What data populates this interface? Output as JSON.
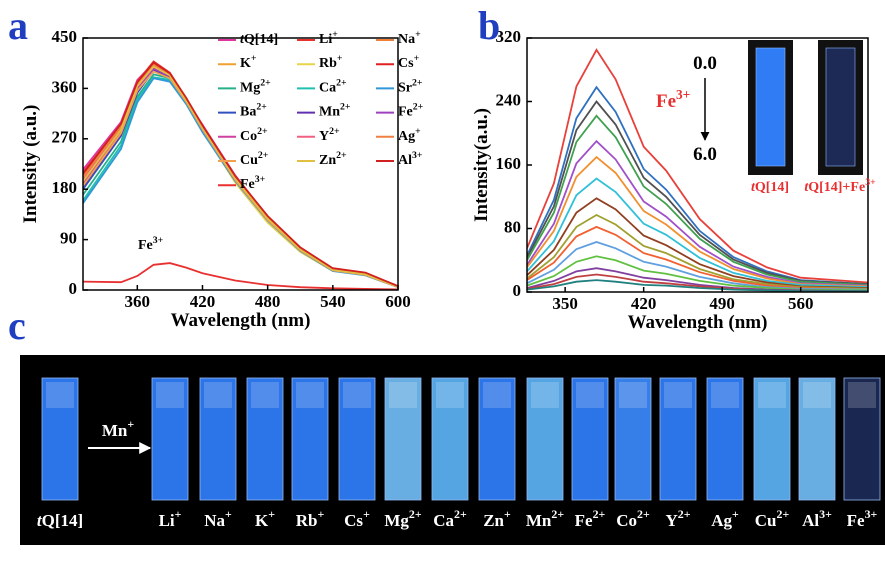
{
  "chart_data": [
    {
      "type": "line",
      "panel": "a",
      "xlabel": "Wavelength (nm)",
      "ylabel": "Intensity (a.u.)",
      "xlim": [
        310,
        600
      ],
      "xticks": [
        360,
        420,
        480,
        540,
        600
      ],
      "ylim": [
        0,
        450
      ],
      "yticks": [
        0,
        90,
        180,
        270,
        360,
        450
      ],
      "annotation": "Fe3+",
      "x": [
        310,
        345,
        360,
        375,
        390,
        405,
        420,
        450,
        480,
        510,
        540,
        570,
        600
      ],
      "series": [
        {
          "name": "tQ[14]",
          "color": "#e0359b",
          "values": [
            215,
            300,
            375,
            405,
            385,
            340,
            295,
            205,
            130,
            75,
            38,
            30,
            5
          ]
        },
        {
          "name": "Li+",
          "color": "#e8322e",
          "values": [
            210,
            295,
            372,
            408,
            388,
            342,
            293,
            200,
            128,
            74,
            37,
            29,
            5
          ]
        },
        {
          "name": "Na+",
          "color": "#f07f3c",
          "values": [
            200,
            290,
            368,
            402,
            384,
            340,
            290,
            198,
            125,
            72,
            36,
            28,
            6
          ]
        },
        {
          "name": "K+",
          "color": "#f0a030",
          "values": [
            195,
            288,
            365,
            400,
            382,
            338,
            288,
            195,
            122,
            70,
            35,
            27,
            6
          ]
        },
        {
          "name": "Rb+",
          "color": "#e8d44a",
          "values": [
            190,
            285,
            360,
            396,
            380,
            335,
            285,
            192,
            120,
            68,
            34,
            27,
            6
          ]
        },
        {
          "name": "Cs+",
          "color": "#e02020",
          "values": [
            205,
            295,
            370,
            404,
            386,
            342,
            292,
            203,
            132,
            76,
            38,
            30,
            7
          ]
        },
        {
          "name": "Mg2+",
          "color": "#26b08a",
          "values": [
            170,
            265,
            345,
            385,
            378,
            338,
            288,
            200,
            128,
            73,
            36,
            28,
            6
          ]
        },
        {
          "name": "Ca2+",
          "color": "#20c0b0",
          "values": [
            160,
            258,
            340,
            380,
            375,
            335,
            285,
            198,
            126,
            72,
            35,
            27,
            6
          ]
        },
        {
          "name": "Sr2+",
          "color": "#3098d8",
          "values": [
            155,
            252,
            335,
            378,
            372,
            332,
            282,
            195,
            124,
            70,
            34,
            26,
            5
          ]
        },
        {
          "name": "Ba2+",
          "color": "#3050c0",
          "values": [
            180,
            275,
            352,
            392,
            380,
            338,
            288,
            198,
            126,
            72,
            36,
            28,
            6
          ]
        },
        {
          "name": "Mn2+",
          "color": "#6030b0",
          "values": [
            185,
            278,
            355,
            394,
            381,
            339,
            289,
            199,
            127,
            73,
            36,
            28,
            6
          ]
        },
        {
          "name": "Fe2+",
          "color": "#a040c0",
          "values": [
            188,
            280,
            358,
            395,
            382,
            338,
            290,
            200,
            128,
            74,
            37,
            29,
            6
          ]
        },
        {
          "name": "Co2+",
          "color": "#d040a0",
          "values": [
            192,
            284,
            362,
            398,
            384,
            340,
            291,
            201,
            129,
            74,
            37,
            29,
            6
          ]
        },
        {
          "name": "Y2+",
          "color": "#f06080",
          "values": [
            198,
            288,
            366,
            402,
            386,
            342,
            293,
            203,
            131,
            75,
            38,
            30,
            6
          ]
        },
        {
          "name": "Ag+",
          "color": "#f08040",
          "values": [
            202,
            292,
            368,
            403,
            385,
            341,
            292,
            202,
            130,
            75,
            38,
            30,
            6
          ]
        },
        {
          "name": "Cu2+",
          "color": "#f0a050",
          "values": [
            186,
            280,
            356,
            390,
            378,
            336,
            287,
            197,
            125,
            71,
            35,
            27,
            5
          ]
        },
        {
          "name": "Zn2+",
          "color": "#e0c040",
          "values": [
            194,
            286,
            364,
            399,
            383,
            339,
            290,
            200,
            128,
            73,
            36,
            28,
            6
          ]
        },
        {
          "name": "Al3+",
          "color": "#d02020",
          "values": [
            208,
            297,
            371,
            406,
            387,
            343,
            294,
            204,
            132,
            76,
            39,
            31,
            7
          ]
        },
        {
          "name": "Fe3+",
          "color": "#e83030",
          "values": [
            15,
            14,
            25,
            45,
            48,
            40,
            30,
            17,
            9,
            5,
            3,
            2,
            1
          ]
        }
      ]
    },
    {
      "type": "line",
      "panel": "b",
      "xlabel": "Wavelength (nm)",
      "ylabel": "Intensity(a.u.)",
      "xlim": [
        316,
        620
      ],
      "xticks": [
        350,
        420,
        490,
        560
      ],
      "ylim": [
        0,
        320
      ],
      "yticks": [
        0,
        80,
        160,
        240,
        320
      ],
      "annotation": "Fe3+",
      "range_start": "0.0",
      "range_end": "6.0",
      "inset_labels": [
        "tQ[14]",
        "tQ[14]+Fe3+"
      ],
      "x": [
        316,
        340,
        360,
        378,
        395,
        420,
        440,
        470,
        500,
        530,
        560,
        620
      ],
      "series": [
        {
          "color": "#e8403a",
          "values": [
            55,
            137,
            259,
            305,
            268,
            183,
            153,
            92,
            52,
            31,
            18,
            12
          ]
        },
        {
          "color": "#3070c0",
          "values": [
            46,
            116,
            219,
            258,
            227,
            155,
            129,
            77,
            44,
            26,
            15,
            10
          ]
        },
        {
          "color": "#505050",
          "values": [
            43,
            108,
            204,
            240,
            211,
            144,
            120,
            72,
            41,
            24,
            14,
            10
          ]
        },
        {
          "color": "#40a050",
          "values": [
            40,
            100,
            189,
            222,
            195,
            133,
            111,
            67,
            38,
            22,
            13,
            9
          ]
        },
        {
          "color": "#a050c8",
          "values": [
            34,
            86,
            162,
            190,
            167,
            114,
            95,
            57,
            32,
            19,
            11,
            8
          ]
        },
        {
          "color": "#f09030",
          "values": [
            31,
            77,
            145,
            170,
            150,
            102,
            85,
            51,
            29,
            17,
            10,
            7
          ]
        },
        {
          "color": "#30c0d8",
          "values": [
            26,
            64,
            122,
            143,
            126,
            86,
            72,
            43,
            24,
            14,
            9,
            6
          ]
        },
        {
          "color": "#904020",
          "values": [
            21,
            53,
            100,
            118,
            104,
            71,
            59,
            35,
            20,
            12,
            7,
            5
          ]
        },
        {
          "color": "#a0a030",
          "values": [
            17,
            44,
            82,
            97,
            85,
            58,
            49,
            29,
            16,
            10,
            6,
            4
          ]
        },
        {
          "color": "#f06030",
          "values": [
            15,
            37,
            70,
            82,
            72,
            49,
            41,
            25,
            14,
            8,
            5,
            3
          ]
        },
        {
          "color": "#60a0e0",
          "values": [
            11,
            28,
            54,
            63,
            55,
            38,
            32,
            19,
            11,
            6,
            4,
            3
          ]
        },
        {
          "color": "#60c040",
          "values": [
            8,
            20,
            38,
            45,
            40,
            27,
            23,
            14,
            8,
            5,
            3,
            2
          ]
        },
        {
          "color": "#8040a0",
          "values": [
            5,
            14,
            26,
            30,
            26,
            18,
            15,
            9,
            5,
            3,
            2,
            1
          ]
        },
        {
          "color": "#c04040",
          "values": [
            4,
            10,
            19,
            22,
            19,
            13,
            11,
            7,
            4,
            2,
            1,
            1
          ]
        },
        {
          "color": "#208080",
          "values": [
            3,
            7,
            13,
            15,
            13,
            9,
            8,
            5,
            3,
            2,
            1,
            1
          ]
        }
      ]
    }
  ],
  "photo": {
    "panel": "c",
    "arrow_label": "Mn+",
    "samples": [
      {
        "label": "tQ[14]",
        "color": "#2f7cf5"
      },
      {
        "label": "Li+",
        "color": "#2f7cf5"
      },
      {
        "label": "Na+",
        "color": "#2f7cf5"
      },
      {
        "label": "K+",
        "color": "#2f7cf5"
      },
      {
        "label": "Rb+",
        "color": "#2f7cf5"
      },
      {
        "label": "Cs+",
        "color": "#2f7cf5"
      },
      {
        "label": "Mg2+",
        "color": "#6fb8f0"
      },
      {
        "label": "Ca2+",
        "color": "#5aaef0"
      },
      {
        "label": "Zn+",
        "color": "#2f7cf5"
      },
      {
        "label": "Mn2+",
        "color": "#5aaef0"
      },
      {
        "label": "Fe2+",
        "color": "#2f7cf5"
      },
      {
        "label": "Co2+",
        "color": "#3a86f5"
      },
      {
        "label": "Y2+",
        "color": "#2f7cf5"
      },
      {
        "label": "Ag+",
        "color": "#2f7cf5"
      },
      {
        "label": "Cu2+",
        "color": "#5aaef0"
      },
      {
        "label": "Al3+",
        "color": "#6fb8f0"
      },
      {
        "label": "Fe3+",
        "color": "#1c2a55"
      }
    ]
  }
}
